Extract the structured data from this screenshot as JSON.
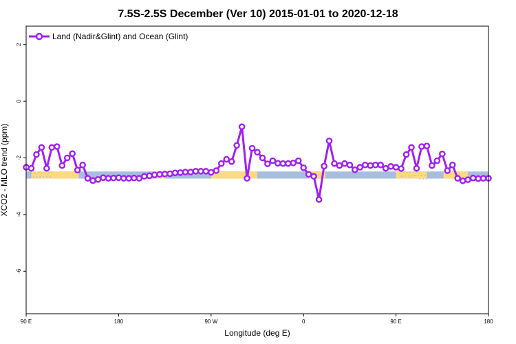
{
  "chart_data": {
    "type": "line",
    "title": "7.5S-2.5S December (Ver 10)   2015-01-01 to 2020-12-18",
    "xlabel": "Longitude (deg E)",
    "ylabel": "XCO2 - MLO trend (ppm)",
    "xlim": [
      90,
      450
    ],
    "ylim": [
      -7.5,
      2.65
    ],
    "x_ticks": [
      {
        "value": 90,
        "label": "90 E"
      },
      {
        "value": 162,
        "label": "180"
      },
      {
        "value": 234,
        "label": "90 W"
      },
      {
        "value": 306,
        "label": "0"
      },
      {
        "value": 378,
        "label": "90 E"
      },
      {
        "value": 450,
        "label": "180"
      }
    ],
    "y_ticks": [
      {
        "value": 2,
        "label": "2"
      },
      {
        "value": 0,
        "label": "0"
      },
      {
        "value": -2,
        "label": "-2"
      },
      {
        "value": -4,
        "label": "-4"
      },
      {
        "value": -6,
        "label": "-6"
      }
    ],
    "grid": false,
    "legend_position": "top-left",
    "series": [
      {
        "name": "Land (Nadir&Glint) and Ocean (Glint)",
        "color": "#a020f0",
        "x": [
          90,
          94,
          98,
          102,
          106,
          110,
          114,
          118,
          122,
          126,
          130,
          134,
          138,
          142,
          146,
          150,
          154,
          158,
          162,
          166,
          170,
          174,
          178,
          182,
          186,
          190,
          194,
          198,
          202,
          206,
          210,
          214,
          218,
          222,
          226,
          230,
          234,
          238,
          242,
          246,
          250,
          254,
          258,
          262,
          266,
          270,
          274,
          278,
          282,
          286,
          290,
          294,
          298,
          302,
          306,
          310,
          314,
          318,
          322,
          326,
          330,
          334,
          338,
          342,
          346,
          350,
          354,
          358,
          362,
          366,
          370,
          374,
          378,
          382,
          386,
          390,
          394,
          398,
          402,
          406,
          410,
          414,
          418,
          422,
          426,
          430,
          434,
          438,
          442,
          446,
          450
        ],
        "y": [
          -2.33,
          -2.37,
          -1.88,
          -1.63,
          -2.37,
          -1.63,
          -1.6,
          -2.27,
          -2.0,
          -1.85,
          -2.43,
          -2.25,
          -2.72,
          -2.8,
          -2.76,
          -2.7,
          -2.72,
          -2.71,
          -2.7,
          -2.72,
          -2.72,
          -2.71,
          -2.72,
          -2.65,
          -2.63,
          -2.6,
          -2.58,
          -2.57,
          -2.56,
          -2.53,
          -2.52,
          -2.5,
          -2.5,
          -2.47,
          -2.47,
          -2.47,
          -2.51,
          -2.45,
          -2.2,
          -2.05,
          -2.13,
          -1.56,
          -0.9,
          -2.72,
          -1.66,
          -1.8,
          -2.0,
          -2.21,
          -2.1,
          -2.19,
          -2.2,
          -2.2,
          -2.18,
          -2.1,
          -2.35,
          -2.58,
          -2.65,
          -3.47,
          -2.29,
          -1.4,
          -2.2,
          -2.27,
          -2.2,
          -2.25,
          -2.42,
          -2.33,
          -2.25,
          -2.27,
          -2.25,
          -2.25,
          -2.37,
          -2.3,
          -2.33,
          -2.38,
          -1.88,
          -1.63,
          -2.37,
          -1.6,
          -1.58,
          -2.27,
          -2.1,
          -1.86,
          -2.45,
          -2.25,
          -2.72,
          -2.81,
          -2.77,
          -2.71,
          -2.73,
          -2.72,
          -2.72
        ]
      }
    ],
    "surface_strip": {
      "y_top": -2.48,
      "y_bottom": -2.73,
      "ocean_color": "#a8bedc",
      "land_color": "#fcda82",
      "land_ranges": [
        [
          94,
          131
        ],
        [
          191,
          199
        ],
        [
          234,
          270
        ],
        [
          310,
          323
        ],
        [
          378,
          402
        ],
        [
          415,
          434
        ]
      ],
      "dots_ranges": [
        [
          94,
          110
        ],
        [
          382,
          402
        ]
      ]
    }
  }
}
